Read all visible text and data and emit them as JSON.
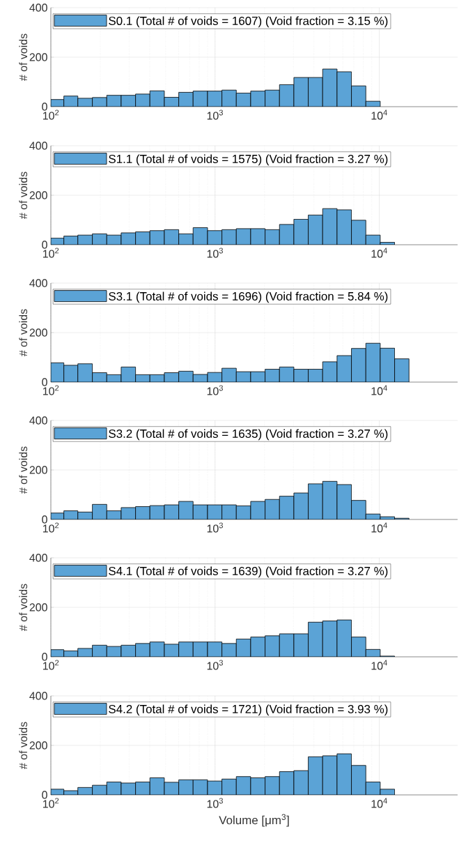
{
  "chart_data": [
    {
      "type": "histogram",
      "ylabel": "# of voids",
      "log": "x",
      "grid": true,
      "legend": "top left",
      "xlim": [
        100,
        30000
      ],
      "ylim": [
        0,
        400
      ],
      "yticks": [
        0,
        200,
        400
      ],
      "xticks": [
        {
          "value": 100,
          "label": "10$^{2}$"
        },
        {
          "value": 1000,
          "label": "10$^{3}$"
        },
        {
          "value": 10000,
          "label": "10$^{4}$"
        }
      ],
      "bins": [
        100,
        120,
        146,
        179,
        219,
        268,
        328,
        401,
        491,
        601,
        735,
        900,
        1101,
        1347,
        1648,
        2017,
        2468,
        3020,
        3695,
        4521,
        5532,
        6769,
        8283,
        10135
      ],
      "series": [
        {
          "name": "S0.1 (Total # of voids = 1607) (Void fraction = 3.15 %)",
          "color": "#5ba3d6",
          "values": [
            29,
            43,
            34,
            37,
            46,
            46,
            51,
            64,
            38,
            58,
            63,
            63,
            67,
            55,
            63,
            67,
            89,
            118,
            118,
            152,
            141,
            84,
            22
          ]
        }
      ]
    },
    {
      "type": "histogram",
      "ylabel": "# of voids",
      "log": "x",
      "grid": true,
      "legend": "top left",
      "xlim": [
        100,
        30000
      ],
      "ylim": [
        0,
        400
      ],
      "yticks": [
        0,
        200,
        400
      ],
      "xticks": [
        {
          "value": 100,
          "label": "10$^{2}$"
        },
        {
          "value": 1000,
          "label": "10$^{3}$"
        },
        {
          "value": 10000,
          "label": "10$^{4}$"
        }
      ],
      "bins": [
        100,
        120,
        146,
        179,
        219,
        268,
        328,
        401,
        491,
        601,
        735,
        900,
        1101,
        1347,
        1648,
        2017,
        2468,
        3020,
        3695,
        4521,
        5532,
        6769,
        8283,
        10135,
        12401
      ],
      "series": [
        {
          "name": "S1.1 (Total # of voids = 1575) (Void fraction = 3.27 %)",
          "color": "#5ba3d6",
          "values": [
            27,
            35,
            39,
            44,
            39,
            48,
            52,
            57,
            61,
            44,
            69,
            57,
            61,
            65,
            65,
            61,
            82,
            103,
            120,
            146,
            141,
            99,
            39,
            10
          ]
        }
      ]
    },
    {
      "type": "histogram",
      "ylabel": "# of voids",
      "log": "x",
      "grid": true,
      "legend": "top left",
      "xlim": [
        100,
        30000
      ],
      "ylim": [
        0,
        400
      ],
      "yticks": [
        0,
        200,
        400
      ],
      "xticks": [
        {
          "value": 100,
          "label": "10$^{2}$"
        },
        {
          "value": 1000,
          "label": "10$^{3}$"
        },
        {
          "value": 10000,
          "label": "10$^{4}$"
        }
      ],
      "bins": [
        100,
        120,
        146,
        179,
        219,
        268,
        328,
        401,
        491,
        601,
        735,
        900,
        1101,
        1347,
        1648,
        2017,
        2468,
        3020,
        3695,
        4521,
        5532,
        6769,
        8283,
        10135,
        12401,
        15174
      ],
      "series": [
        {
          "name": "S3.1 (Total # of voids = 1696) (Void fraction = 5.84 %)",
          "color": "#5ba3d6",
          "values": [
            78,
            68,
            74,
            38,
            30,
            61,
            30,
            30,
            38,
            44,
            31,
            39,
            56,
            42,
            42,
            52,
            61,
            52,
            52,
            82,
            107,
            136,
            157,
            137,
            94
          ]
        }
      ]
    },
    {
      "type": "histogram",
      "ylabel": "# of voids",
      "log": "x",
      "grid": true,
      "legend": "top left",
      "xlim": [
        100,
        30000
      ],
      "ylim": [
        0,
        400
      ],
      "yticks": [
        0,
        200,
        400
      ],
      "xticks": [
        {
          "value": 100,
          "label": "10$^{2}$"
        },
        {
          "value": 1000,
          "label": "10$^{3}$"
        },
        {
          "value": 10000,
          "label": "10$^{4}$"
        }
      ],
      "bins": [
        100,
        120,
        146,
        179,
        219,
        268,
        328,
        401,
        491,
        601,
        735,
        900,
        1101,
        1347,
        1648,
        2017,
        2468,
        3020,
        3695,
        4521,
        5532,
        6769,
        8283,
        10135,
        12401,
        15174
      ],
      "series": [
        {
          "name": "S3.2 (Total # of voids = 1635) (Void fraction = 3.27 %)",
          "color": "#5ba3d6",
          "values": [
            26,
            35,
            30,
            61,
            35,
            48,
            52,
            56,
            59,
            73,
            59,
            59,
            59,
            55,
            73,
            81,
            94,
            107,
            144,
            154,
            141,
            77,
            22,
            11,
            5
          ]
        }
      ]
    },
    {
      "type": "histogram",
      "ylabel": "# of voids",
      "log": "x",
      "grid": true,
      "legend": "top left",
      "xlim": [
        100,
        30000
      ],
      "ylim": [
        0,
        400
      ],
      "yticks": [
        0,
        200,
        400
      ],
      "xticks": [
        {
          "value": 100,
          "label": "10$^{2}$"
        },
        {
          "value": 1000,
          "label": "10$^{3}$"
        },
        {
          "value": 10000,
          "label": "10$^{4}$"
        }
      ],
      "bins": [
        100,
        120,
        146,
        179,
        219,
        268,
        328,
        401,
        491,
        601,
        735,
        900,
        1101,
        1347,
        1648,
        2017,
        2468,
        3020,
        3695,
        4521,
        5532,
        6769,
        8283,
        10135,
        12401
      ],
      "series": [
        {
          "name": "S4.1 (Total # of voids = 1639) (Void fraction = 3.27 %)",
          "color": "#5ba3d6",
          "values": [
            29,
            24,
            34,
            47,
            42,
            47,
            54,
            60,
            51,
            60,
            60,
            60,
            54,
            72,
            80,
            85,
            93,
            93,
            140,
            145,
            149,
            80,
            30,
            3
          ]
        }
      ]
    },
    {
      "type": "histogram",
      "ylabel": "# of voids",
      "xlabel": "Volume [μm$^{3}$]",
      "log": "x",
      "grid": true,
      "legend": "top left",
      "xlim": [
        100,
        30000
      ],
      "ylim": [
        0,
        400
      ],
      "yticks": [
        0,
        200,
        400
      ],
      "xticks": [
        {
          "value": 100,
          "label": "10$^{2}$"
        },
        {
          "value": 1000,
          "label": "10$^{3}$"
        },
        {
          "value": 10000,
          "label": "10$^{4}$"
        }
      ],
      "bins": [
        100,
        120,
        146,
        179,
        219,
        268,
        328,
        401,
        491,
        601,
        735,
        900,
        1101,
        1347,
        1648,
        2017,
        2468,
        3020,
        3695,
        4521,
        5532,
        6769,
        8283,
        10135,
        12401
      ],
      "series": [
        {
          "name": "S4.2 (Total # of voids = 1721) (Void fraction = 3.93 %)",
          "color": "#5ba3d6",
          "values": [
            23,
            17,
            30,
            39,
            52,
            48,
            52,
            69,
            51,
            61,
            61,
            56,
            64,
            74,
            69,
            74,
            94,
            98,
            154,
            158,
            166,
            119,
            52,
            23
          ]
        }
      ]
    }
  ]
}
